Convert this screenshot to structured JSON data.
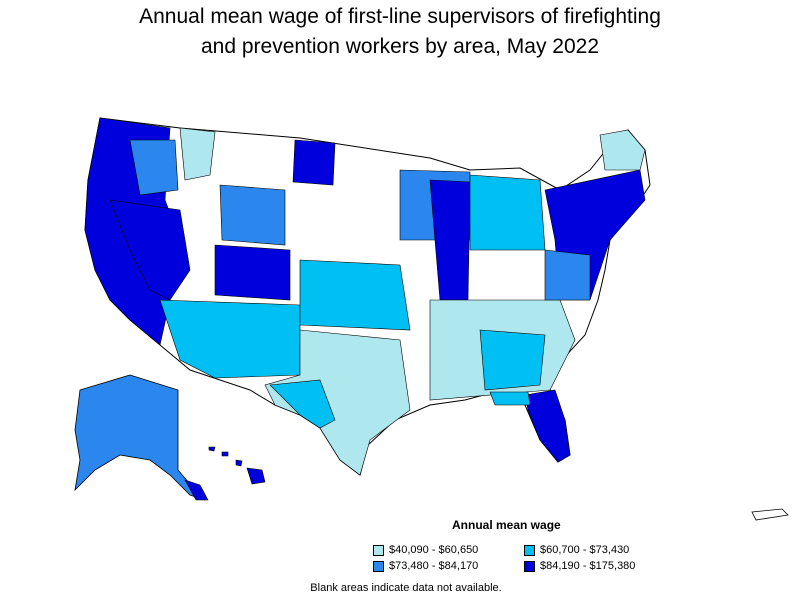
{
  "title_line1": "Annual mean wage of first-line supervisors of firefighting",
  "title_line2": "and prevention workers by area, May 2022",
  "legend": {
    "title": "Annual mean wage",
    "items": [
      {
        "label": "$40,090 - $60,650",
        "color": "#aee8ee"
      },
      {
        "label": "$60,700 - $73,430",
        "color": "#00bff3"
      },
      {
        "label": "$73,480 - $84,170",
        "color": "#2b87ee"
      },
      {
        "label": "$84,190 - $175,380",
        "color": "#0000dd"
      }
    ]
  },
  "footnote": "Blank areas indicate data not available."
}
